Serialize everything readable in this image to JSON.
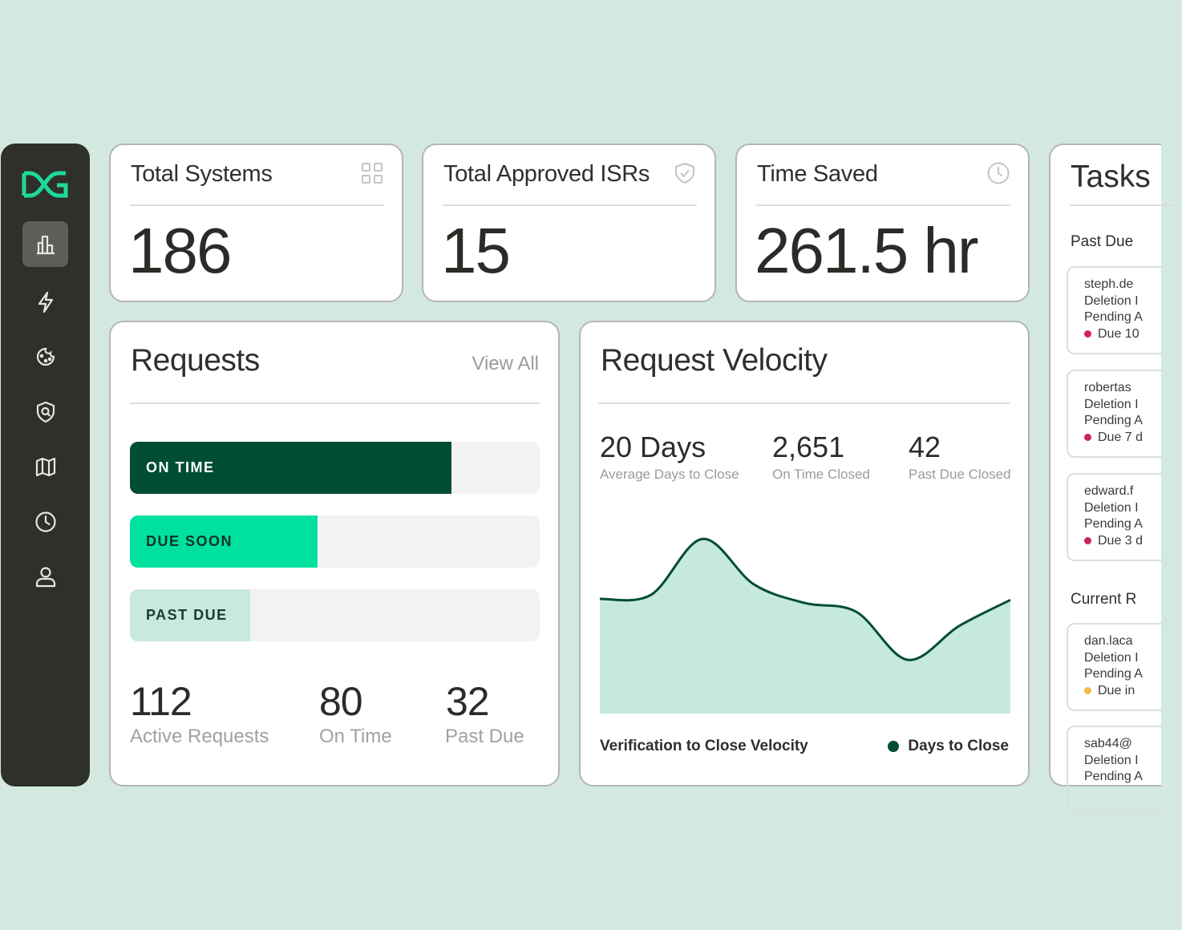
{
  "colors": {
    "background": "#d3e9e0",
    "sidebar": "#2f2f2b",
    "brand_green": "#1ed99a",
    "on_time": "#004d34",
    "due_soon": "#00e19f",
    "past_due": "#c8e9dd",
    "chart_line": "#004d34",
    "chart_fill": "#c5e9dc",
    "past_due_dot": "#d0225c",
    "current_dot": "#f2b84b"
  },
  "sidebar": {
    "logo_icon": "dg-logo-icon",
    "items": [
      {
        "icon": "bar-chart-icon",
        "active": true
      },
      {
        "icon": "lightning-icon",
        "active": false
      },
      {
        "icon": "cookie-icon",
        "active": false
      },
      {
        "icon": "shield-search-icon",
        "active": false
      },
      {
        "icon": "map-icon",
        "active": false
      },
      {
        "icon": "clock-icon",
        "active": false
      },
      {
        "icon": "user-icon",
        "active": false
      }
    ]
  },
  "stats": [
    {
      "title": "Total Systems",
      "value": "186",
      "icon": "grid-icon"
    },
    {
      "title": "Total Approved ISRs",
      "value": "15",
      "icon": "shield-check-icon"
    },
    {
      "title": "Time Saved",
      "value": "261.5 hr",
      "icon": "clock-icon"
    }
  ],
  "requests": {
    "title": "Requests",
    "view_all": "View All",
    "bars": [
      {
        "label": "ON TIME",
        "fraction": 0.785,
        "color": "#004d34",
        "text_color": "#ffffff"
      },
      {
        "label": "DUE SOON",
        "fraction": 0.457,
        "color": "#00e19f",
        "text_color": "#0f3326"
      },
      {
        "label": "PAST DUE",
        "fraction": 0.294,
        "color": "#c8e9dd",
        "text_color": "#1f3a30"
      }
    ],
    "metrics": [
      {
        "value": "112",
        "label": "Active Requests"
      },
      {
        "value": "80",
        "label": "On Time"
      },
      {
        "value": "32",
        "label": "Past Due"
      }
    ]
  },
  "velocity": {
    "title": "Request Velocity",
    "metrics": [
      {
        "value": "20 Days",
        "label": "Average Days to Close"
      },
      {
        "value": "2,651",
        "label": "On Time Closed"
      },
      {
        "value": "42",
        "label": "Past Due Closed"
      }
    ],
    "footer_label": "Verification to Close Velocity",
    "legend_label": "Days to Close"
  },
  "chart_data": {
    "type": "area",
    "series": [
      {
        "name": "Days to Close",
        "values": [
          22,
          22.8,
          33.5,
          24.8,
          21.2,
          19.5,
          10.3,
          16.8,
          21.8
        ]
      }
    ],
    "x": [
      0,
      1,
      2,
      3,
      4,
      5,
      6,
      7,
      8
    ],
    "ylim": [
      0,
      40
    ],
    "grid": false,
    "legend": "bottom-right",
    "title": "",
    "xlabel": "",
    "ylabel": ""
  },
  "tasks": {
    "title": "Tasks",
    "groups": [
      {
        "label": "Past Due",
        "items": [
          {
            "user": "steph.de",
            "type": "Deletion I",
            "status": "Pending A",
            "due": "Due 10",
            "dot": "#d0225c"
          },
          {
            "user": "robertas",
            "type": "Deletion I",
            "status": "Pending A",
            "due": "Due 7 d",
            "dot": "#d0225c"
          },
          {
            "user": "edward.f",
            "type": "Deletion I",
            "status": "Pending A",
            "due": "Due 3 d",
            "dot": "#d0225c"
          }
        ]
      },
      {
        "label": "Current R",
        "items": [
          {
            "user": "dan.laca",
            "type": "Deletion I",
            "status": "Pending A",
            "due": "Due in",
            "dot": "#f2b84b"
          },
          {
            "user": "sab44@",
            "type": "Deletion I",
            "status": "Pending A",
            "due": "",
            "dot": ""
          }
        ]
      }
    ]
  }
}
